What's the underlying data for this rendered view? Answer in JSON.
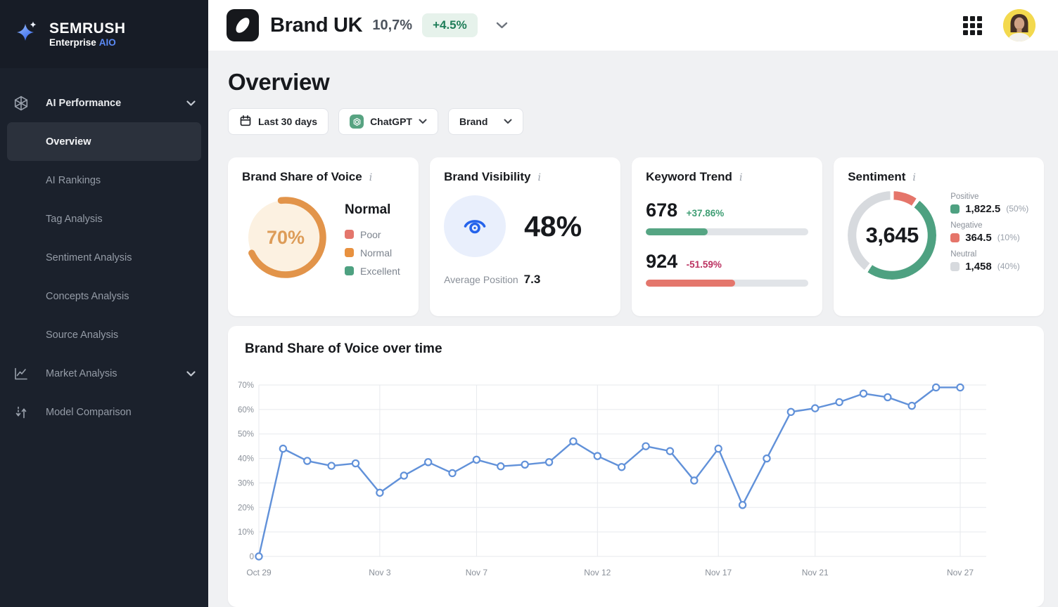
{
  "sidebar": {
    "logo": {
      "title": "SEMRUSH",
      "subtitle": "Enterprise",
      "badge": "AIO"
    },
    "items": [
      {
        "label": "AI Performance"
      },
      {
        "label": "Overview"
      },
      {
        "label": "AI Rankings"
      },
      {
        "label": "Tag Analysis"
      },
      {
        "label": "Sentiment Analysis"
      },
      {
        "label": "Concepts Analysis"
      },
      {
        "label": "Source Analysis"
      },
      {
        "label": "Market Analysis"
      },
      {
        "label": "Model Comparison"
      }
    ]
  },
  "header": {
    "brand_name": "Brand UK",
    "brand_value": "10,7%",
    "brand_delta": "+4.5%",
    "delta_color": "#1e7d58"
  },
  "page": {
    "title": "Overview",
    "filters": {
      "date_range": "Last 30 days",
      "model": "ChatGPT",
      "scope": "Brand"
    }
  },
  "cards": {
    "share_of_voice": {
      "title": "Brand Share of Voice",
      "value_pct": 70,
      "value_label": "70%",
      "status": "Normal",
      "arc_color": "#e2944a",
      "legend": [
        {
          "label": "Poor",
          "color": "#e4766c"
        },
        {
          "label": "Normal",
          "color": "#e8913f"
        },
        {
          "label": "Excellent",
          "color": "#4ea181"
        }
      ]
    },
    "visibility": {
      "title": "Brand Visibility",
      "value": "48%",
      "avg_position_label": "Average Position",
      "avg_position_value": "7.3",
      "icon_color": "#2563eb"
    },
    "keyword_trend": {
      "title": "Keyword Trend",
      "rows": [
        {
          "value": "678",
          "delta": "+37.86%",
          "direction": "up",
          "bar_pct": 38,
          "bar_color": "#55a583"
        },
        {
          "value": "924",
          "delta": "-51.59%",
          "direction": "down",
          "bar_pct": 55,
          "bar_color": "#e4766c"
        }
      ]
    },
    "sentiment": {
      "title": "Sentiment",
      "total": "3,645",
      "legend": [
        {
          "label": "Positive",
          "value": "1,822.5",
          "pct": "(50%)",
          "pct_num": 50,
          "color": "#4ea181"
        },
        {
          "label": "Negative",
          "value": "364.5",
          "pct": "(10%)",
          "pct_num": 10,
          "color": "#e5756a"
        },
        {
          "label": "Neutral",
          "value": "1,458",
          "pct": "(40%)",
          "pct_num": 40,
          "color": "#d7dade"
        }
      ],
      "ring_order_from_top": [
        "Negative",
        "Positive",
        "Neutral"
      ]
    }
  },
  "chart_data": {
    "type": "line",
    "title": "Brand Share of Voice over time",
    "ylabel": "",
    "xlabel": "",
    "ylim": [
      0,
      70
    ],
    "grid": true,
    "line_color": "#6191d9",
    "y_tick_labels": [
      "0",
      "10%",
      "20%",
      "30%",
      "40%",
      "50%",
      "60%",
      "70%"
    ],
    "x_tick_labels": [
      "Oct 29",
      "Nov 3",
      "Nov 7",
      "Nov 12",
      "Nov 17",
      "Nov 21",
      "Nov 27"
    ],
    "x_tick_indices": [
      0,
      5,
      9,
      14,
      19,
      23,
      29
    ],
    "values": [
      0,
      44,
      39,
      37,
      38,
      26,
      33,
      38.5,
      34,
      39.5,
      36.8,
      37.5,
      38.5,
      47,
      41,
      36.5,
      45,
      43,
      31,
      44,
      21,
      40,
      59,
      60.5,
      63,
      66.5,
      65,
      61.5,
      69,
      69
    ]
  }
}
